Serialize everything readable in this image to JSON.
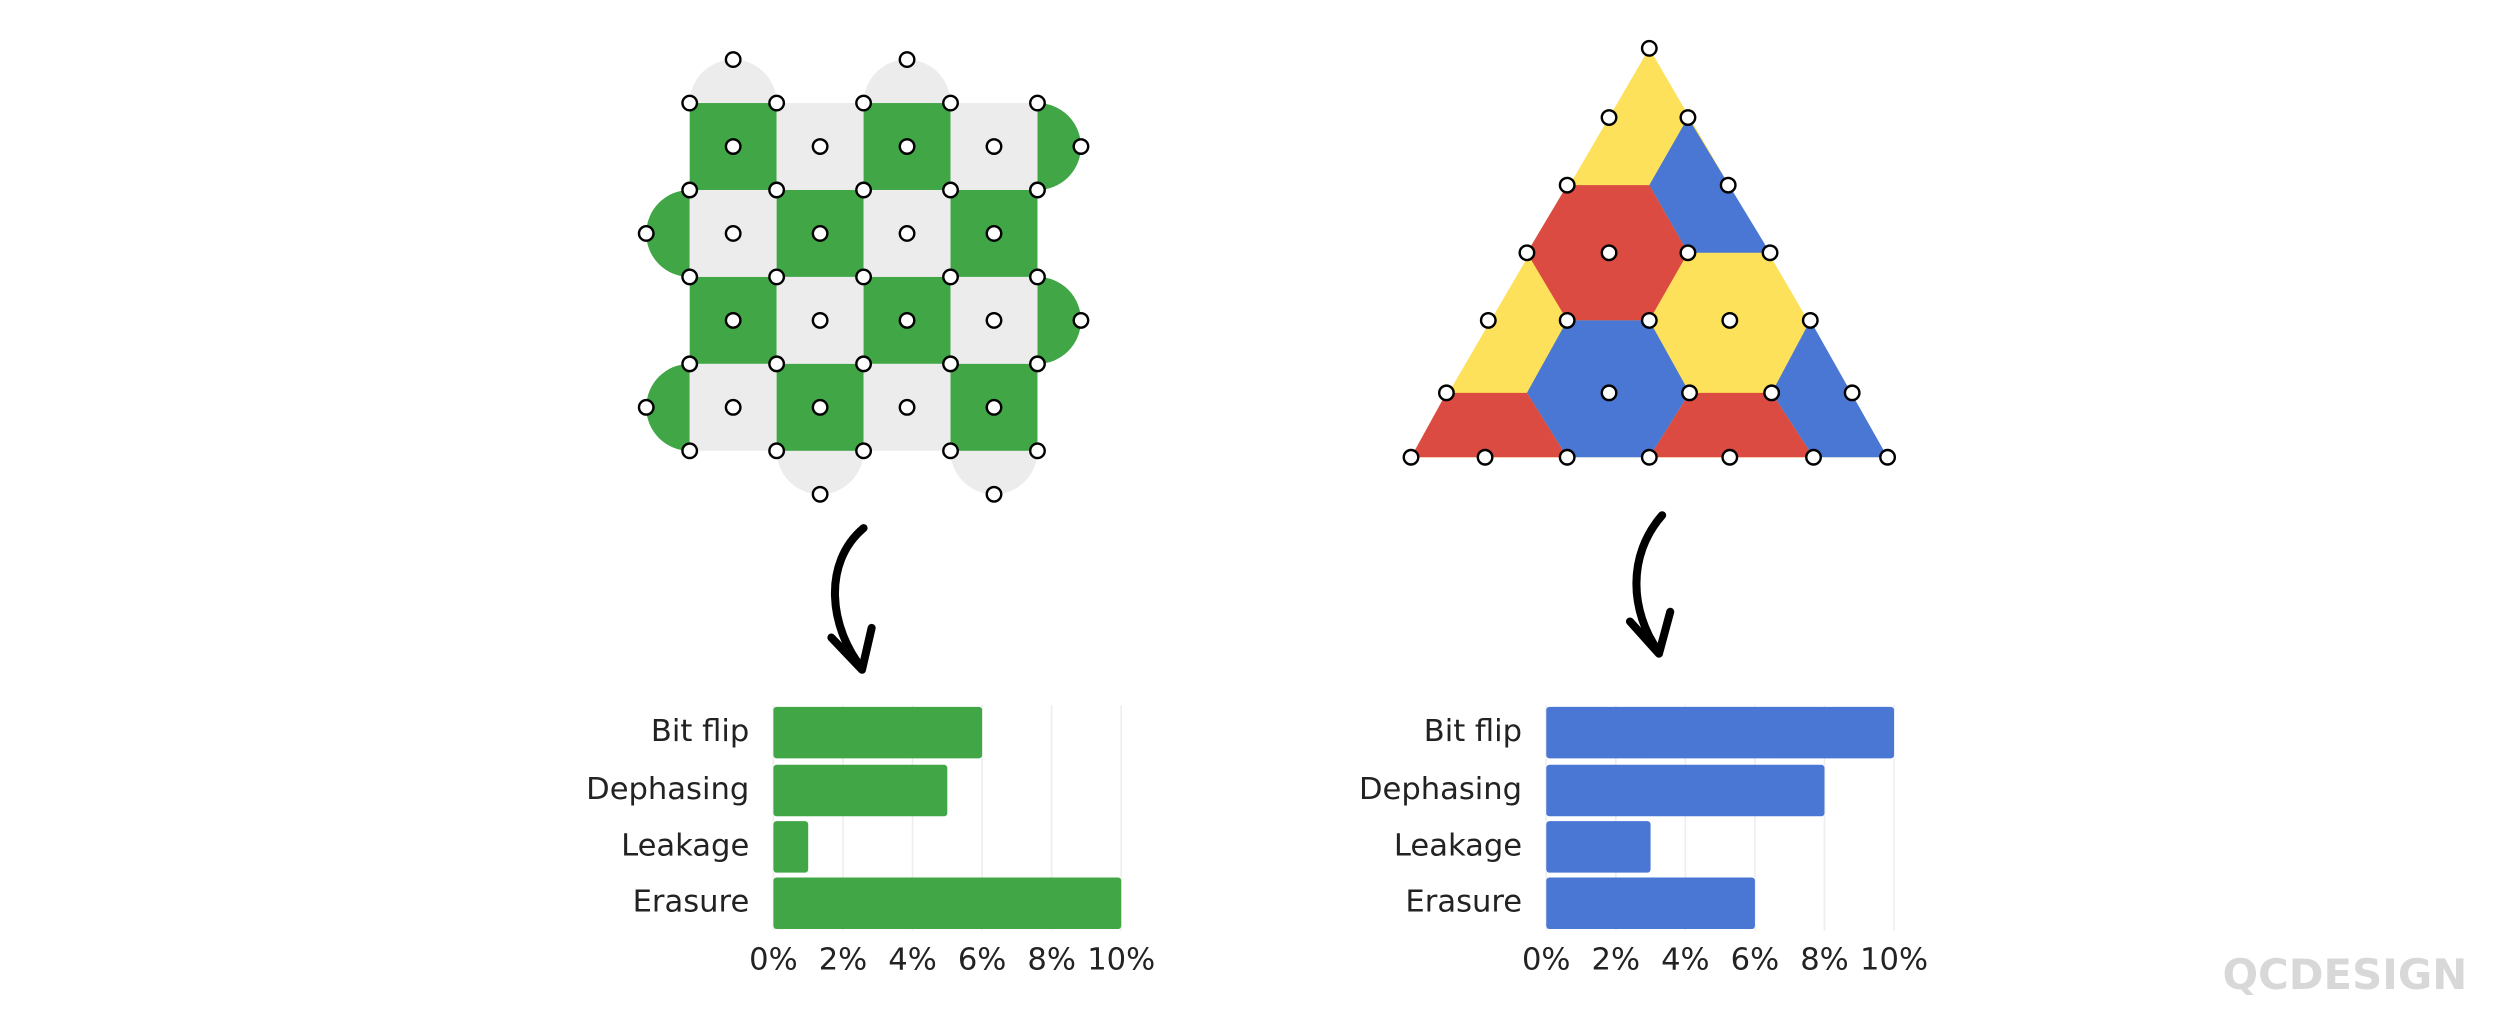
{
  "chart_data": [
    {
      "type": "hbar",
      "categories": [
        "Bit flip",
        "Dephasing",
        "Leakage",
        "Erasure"
      ],
      "values": [
        6,
        5,
        1,
        10
      ],
      "color": "#40a646",
      "xlim": [
        0,
        10
      ],
      "xticks": [
        {
          "value": 0,
          "label": "0%"
        },
        {
          "value": 2,
          "label": "2%"
        },
        {
          "value": 4,
          "label": "4%"
        },
        {
          "value": 6,
          "label": "6%"
        },
        {
          "value": 8,
          "label": "8%"
        },
        {
          "value": 10,
          "label": "10%"
        }
      ],
      "grid": true
    },
    {
      "type": "hbar",
      "categories": [
        "Bit flip",
        "Dephasing",
        "Leakage",
        "Erasure"
      ],
      "values": [
        10,
        8,
        3,
        6
      ],
      "color": "#4a76d4",
      "xlim": [
        0,
        10
      ],
      "xticks": [
        {
          "value": 0,
          "label": "0%"
        },
        {
          "value": 2,
          "label": "2%"
        },
        {
          "value": 4,
          "label": "4%"
        },
        {
          "value": 6,
          "label": "6%"
        },
        {
          "value": 8,
          "label": "8%"
        },
        {
          "value": 10,
          "label": "10%"
        }
      ],
      "grid": true
    }
  ],
  "logo": "QCDESIGN"
}
